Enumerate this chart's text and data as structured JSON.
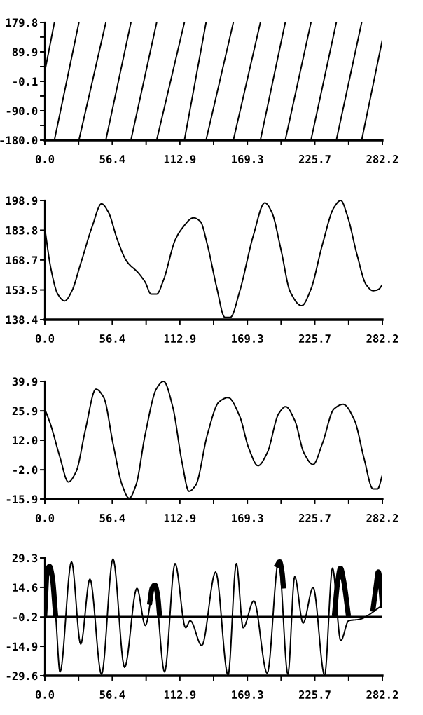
{
  "chart_data": [
    {
      "type": "line",
      "xlim": [
        0,
        282.2
      ],
      "ylim": [
        -180,
        179.8
      ],
      "xticks": [
        {
          "value": 0,
          "label": "0.0"
        },
        {
          "value": 28.2,
          "label": null
        },
        56.4,
        {
          "value": 84.7,
          "label": null
        },
        112.9,
        {
          "value": 141.1,
          "label": null
        },
        169.3,
        {
          "value": 197.5,
          "label": null
        },
        225.7,
        {
          "value": 254.0,
          "label": null
        },
        282.2
      ],
      "yticks": [
        {
          "value": -180,
          "label": "-180.0"
        },
        {
          "value": -135,
          "label": null
        },
        {
          "value": -90,
          "label": "-90.0"
        },
        {
          "value": -45,
          "label": null
        },
        -0.1,
        {
          "value": 45,
          "label": null
        },
        89.9,
        {
          "value": 135,
          "label": null
        },
        179.8
      ],
      "grid": false,
      "legend": false,
      "marker": "none",
      "line_style": "solid",
      "series": [
        {
          "color": "#000000",
          "x": [
            0,
            8,
            null,
            8,
            28.5,
            null,
            28.5,
            51,
            null,
            51,
            72,
            null,
            72,
            93.5,
            null,
            93.5,
            116.7,
            null,
            116.7,
            134.8,
            null,
            134.8,
            157.6,
            null,
            157.6,
            180.2,
            null,
            180.2,
            201,
            null,
            201,
            222.5,
            null,
            222.5,
            243.7,
            null,
            243.7,
            264.9,
            null,
            264.9,
            282.2
          ],
          "values": [
            30,
            179.8,
            null,
            -180,
            179.8,
            null,
            -180,
            179.8,
            null,
            -180,
            179.8,
            null,
            -180,
            179.8,
            null,
            -180,
            179.8,
            null,
            -180,
            179.8,
            null,
            -180,
            179.8,
            null,
            -180,
            179.8,
            null,
            -180,
            179.8,
            null,
            -180,
            179.8,
            null,
            -180,
            179.8,
            null,
            -180,
            179.8,
            null,
            -180,
            127
          ]
        }
      ]
    },
    {
      "type": "line",
      "xlim": [
        0,
        282.2
      ],
      "ylim": [
        138.4,
        198.9
      ],
      "xticks": [
        {
          "value": 0,
          "label": "0.0"
        },
        {
          "value": 28.2,
          "label": null
        },
        56.4,
        {
          "value": 84.7,
          "label": null
        },
        112.9,
        {
          "value": 141.1,
          "label": null
        },
        169.3,
        {
          "value": 197.5,
          "label": null
        },
        225.7,
        {
          "value": 254.0,
          "label": null
        },
        282.2
      ],
      "yticks": [
        138.4,
        153.5,
        168.7,
        183.8,
        198.9
      ],
      "grid": false,
      "legend": false,
      "marker": "none",
      "line_style": "solid",
      "series": [
        {
          "color": "#000000",
          "x": [
            0,
            5,
            10.8,
            16.6,
            22.3,
            30,
            39.7,
            47.4,
            53.1,
            60.8,
            68.5,
            78.2,
            83.9,
            88.9,
            93.5,
            99.3,
            108.9,
            114.7,
            124.3,
            130.1,
            135.9,
            143.6,
            150.5,
            155.1,
            162.8,
            174.3,
            183.9,
            189.7,
            197.4,
            205.1,
            214.7,
            222.4,
            232,
            241.7,
            247.4,
            253.2,
            260.9,
            268.6,
            274.4,
            279.1,
            282.2
          ],
          "values": [
            184.7,
            164.5,
            151.4,
            147.9,
            152.6,
            166.9,
            185.9,
            197.2,
            193,
            178.7,
            168,
            162.1,
            157.4,
            151.4,
            151.4,
            158.6,
            178.7,
            184.7,
            190.1,
            188.2,
            176.4,
            155,
            139.6,
            139.6,
            152.6,
            181.1,
            197.7,
            193,
            174,
            152.6,
            145.5,
            153.8,
            176.4,
            195.3,
            198.9,
            190.6,
            171.6,
            156.2,
            153.1,
            153.8,
            156.2
          ]
        }
      ]
    },
    {
      "type": "line",
      "xlim": [
        0,
        282.2
      ],
      "ylim": [
        -15.9,
        39.9
      ],
      "xticks": [
        {
          "value": 0,
          "label": "0.0"
        },
        {
          "value": 28.2,
          "label": null
        },
        56.4,
        {
          "value": 84.7,
          "label": null
        },
        112.9,
        {
          "value": 141.1,
          "label": null
        },
        169.3,
        {
          "value": 197.5,
          "label": null
        },
        225.7,
        {
          "value": 254.0,
          "label": null
        },
        282.2
      ],
      "yticks": [
        -15.9,
        {
          "value": -2,
          "label": "-2.0"
        },
        {
          "value": 12,
          "label": "12.0"
        },
        25.9,
        39.9
      ],
      "grid": false,
      "legend": false,
      "marker": "none",
      "line_style": "solid",
      "series": [
        {
          "color": "#000000",
          "x": [
            0,
            5,
            12.7,
            19.6,
            26.2,
            33.9,
            42.7,
            49.3,
            57,
            64.7,
            70.5,
            76.2,
            83.9,
            93.5,
            99.3,
            106.9,
            114.7,
            120.5,
            126.2,
            135.9,
            145.5,
            153.2,
            162.8,
            170.5,
            178.2,
            185.9,
            195.5,
            201.3,
            209,
            216.6,
            224.3,
            232,
            241.7,
            249.4,
            259,
            266.7,
            274.4,
            278.2,
            282.2
          ],
          "values": [
            26.8,
            19.1,
            3.8,
            -7.8,
            -2.8,
            16.9,
            36.2,
            32.2,
            10.4,
            -9.3,
            -15.5,
            -9.3,
            14.7,
            36.6,
            39.9,
            27.9,
            1.6,
            -12.2,
            -9.3,
            14.7,
            30.1,
            32.2,
            23.5,
            8.2,
            -0.1,
            6,
            24.6,
            27.9,
            21.3,
            6,
            0.5,
            10.4,
            26.8,
            29,
            21.3,
            3.8,
            -11.1,
            -11.1,
            -4.5
          ]
        }
      ]
    },
    {
      "type": "line",
      "xlim": [
        0,
        282.2
      ],
      "ylim": [
        -29.6,
        29.3
      ],
      "xticks": [
        {
          "value": 0,
          "label": "0.0"
        },
        {
          "value": 28.2,
          "label": null
        },
        56.4,
        {
          "value": 84.7,
          "label": null
        },
        112.9,
        {
          "value": 141.1,
          "label": null
        },
        169.3,
        {
          "value": 197.5,
          "label": null
        },
        225.7,
        {
          "value": 254.0,
          "label": null
        },
        282.2
      ],
      "yticks": [
        -29.6,
        -14.9,
        -0.2,
        14.6,
        29.3
      ],
      "grid": false,
      "legend": false,
      "marker": "none",
      "line_style": "solid",
      "ref_lines": [
        {
          "axis": "y",
          "value": -0.2,
          "color": "#000000"
        }
      ],
      "series": [
        {
          "color": "#000000",
          "x": [
            0,
            3.1,
            8.9,
            12.7,
            22.3,
            30,
            37.7,
            47.4,
            57,
            66.7,
            77,
            84,
            91.6,
            100.1,
            108.9,
            117.7,
            121.6,
            131.2,
            142.8,
            153.2,
            160.1,
            165.8,
            174.7,
            185.9,
            195.5,
            203.2,
            208.9,
            215.9,
            224.3,
            233.9,
            240.5,
            247.4,
            254,
            262.9,
            282.2
          ],
          "values": [
            1.4,
            24.6,
            1.4,
            -27.7,
            27.4,
            -13.8,
            18.8,
            -28.9,
            28.8,
            -25.4,
            14.2,
            -4.5,
            15.8,
            -27.7,
            26.5,
            -5.6,
            -2.1,
            -14.5,
            22.3,
            -29.4,
            26.5,
            -5.6,
            7.9,
            -28.4,
            27.9,
            -28.9,
            20,
            -3.3,
            14.6,
            -29.4,
            24.2,
            -12.1,
            -2.1,
            -1.4,
            5.6
          ]
        },
        {
          "color": "#000000",
          "x": [
            0,
            1.9,
            3.9,
            6.2,
            8.9,
            null,
            87.8,
            89.7,
            92,
            94.3,
            95.8,
            null,
            194.4,
            196.3,
            198.3,
            199.4,
            null,
            242.2,
            244.9,
            247.2,
            249.9,
            253.6,
            null,
            274.4,
            277,
            278.8,
            280.8,
            282.2
          ],
          "values": [
            1.4,
            22.3,
            25.1,
            20,
            1.4,
            null,
            7.2,
            14.2,
            15.8,
            10.7,
            1.4,
            null,
            25.8,
            27.4,
            22.3,
            15.3,
            null,
            1.4,
            17.7,
            24.2,
            17.7,
            1.4,
            null,
            3.7,
            15.3,
            22.3,
            15.3,
            5.6
          ]
        }
      ]
    }
  ]
}
